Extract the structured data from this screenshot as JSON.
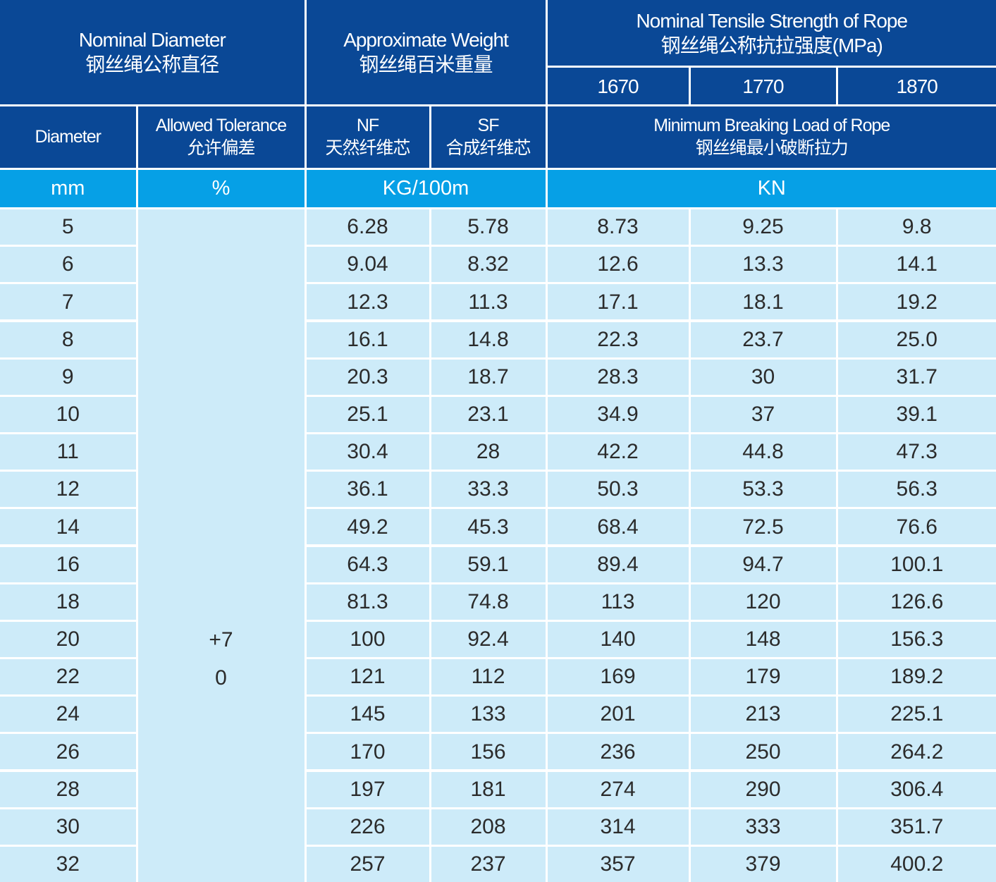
{
  "header": {
    "nominal_diameter": {
      "en": "Nominal Diameter",
      "zh": "钢丝绳公称直径"
    },
    "approximate_weight": {
      "en": "Approximate Weight",
      "zh": "钢丝绳百米重量"
    },
    "tensile_strength": {
      "en": "Nominal Tensile Strength of Rope",
      "zh": "钢丝绳公称抗拉强度(MPa)"
    },
    "strengths": [
      "1670",
      "1770",
      "1870"
    ],
    "diameter": "Diameter",
    "tolerance": {
      "en": "Allowed Tolerance",
      "zh": "允许偏差"
    },
    "nf": {
      "en": "NF",
      "zh": "天然纤维芯"
    },
    "sf": {
      "en": "SF",
      "zh": "合成纤维芯"
    },
    "breaking_load": {
      "en": "Minimum Breaking Load of Rope",
      "zh": "钢丝绳最小破断拉力"
    },
    "units": [
      "mm",
      "%",
      "KG/100m",
      "KN"
    ]
  },
  "table": {
    "tolerance": [
      "+7",
      "0"
    ],
    "rows": [
      [
        "5",
        "6.28",
        "5.78",
        "8.73",
        "9.25",
        "9.8"
      ],
      [
        "6",
        "9.04",
        "8.32",
        "12.6",
        "13.3",
        "14.1"
      ],
      [
        "7",
        "12.3",
        "11.3",
        "17.1",
        "18.1",
        "19.2"
      ],
      [
        "8",
        "16.1",
        "14.8",
        "22.3",
        "23.7",
        "25.0"
      ],
      [
        "9",
        "20.3",
        "18.7",
        "28.3",
        "30",
        "31.7"
      ],
      [
        "10",
        "25.1",
        "23.1",
        "34.9",
        "37",
        "39.1"
      ],
      [
        "11",
        "30.4",
        "28",
        "42.2",
        "44.8",
        "47.3"
      ],
      [
        "12",
        "36.1",
        "33.3",
        "50.3",
        "53.3",
        "56.3"
      ],
      [
        "14",
        "49.2",
        "45.3",
        "68.4",
        "72.5",
        "76.6"
      ],
      [
        "16",
        "64.3",
        "59.1",
        "89.4",
        "94.7",
        "100.1"
      ],
      [
        "18",
        "81.3",
        "74.8",
        "113",
        "120",
        "126.6"
      ],
      [
        "20",
        "100",
        "92.4",
        "140",
        "148",
        "156.3"
      ],
      [
        "22",
        "121",
        "112",
        "169",
        "179",
        "189.2"
      ],
      [
        "24",
        "145",
        "133",
        "201",
        "213",
        "225.1"
      ],
      [
        "26",
        "170",
        "156",
        "236",
        "250",
        "264.2"
      ],
      [
        "28",
        "197",
        "181",
        "274",
        "290",
        "306.4"
      ],
      [
        "30",
        "226",
        "208",
        "314",
        "333",
        "351.7"
      ],
      [
        "32",
        "257",
        "237",
        "357",
        "379",
        "400.2"
      ]
    ]
  }
}
